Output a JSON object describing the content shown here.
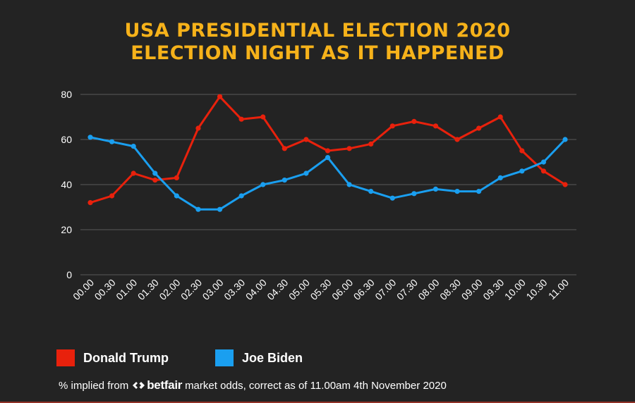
{
  "title": {
    "line1": "USA PRESIDENTIAL ELECTION 2020",
    "line2": "ELECTION NIGHT AS IT HAPPENED"
  },
  "colors": {
    "background": "#232323",
    "title": "#f6b21a",
    "trump": "#e8210c",
    "biden": "#1a9ff0",
    "grid": "#5a5a5a",
    "axis_text": "#ffffff"
  },
  "legend": {
    "trump_label": "Donald Trump",
    "biden_label": "Joe Biden"
  },
  "footnote": {
    "prefix": "% implied from",
    "logo_text": "betfair",
    "suffix": "market odds, correct as of 11.00am 4th November 2020"
  },
  "chart_data": {
    "type": "line",
    "title": "USA PRESIDENTIAL ELECTION 2020 ELECTION NIGHT AS IT HAPPENED",
    "xlabel": "",
    "ylabel": "",
    "ylim": [
      0,
      80
    ],
    "yticks": [
      0,
      20,
      40,
      60,
      80
    ],
    "grid": true,
    "legend_position": "bottom-left",
    "categories": [
      "00.00",
      "00.30",
      "01.00",
      "01.30",
      "02.00",
      "02.30",
      "03.00",
      "03.30",
      "04.00",
      "04.30",
      "05.00",
      "05.30",
      "06.00",
      "06.30",
      "07.00",
      "07.30",
      "08.00",
      "08.30",
      "09.00",
      "09.30",
      "10.00",
      "10.30",
      "11.00"
    ],
    "series": [
      {
        "name": "Donald Trump",
        "color": "#e8210c",
        "values": [
          32,
          35,
          45,
          42,
          43,
          65,
          79,
          69,
          70,
          56,
          60,
          55,
          56,
          58,
          66,
          68,
          66,
          60,
          65,
          70,
          55,
          46,
          40
        ]
      },
      {
        "name": "Joe Biden",
        "color": "#1a9ff0",
        "values": [
          61,
          59,
          57,
          45,
          35,
          29,
          29,
          35,
          40,
          42,
          45,
          52,
          40,
          37,
          34,
          36,
          38,
          37,
          37,
          43,
          46,
          50,
          60
        ]
      }
    ]
  }
}
